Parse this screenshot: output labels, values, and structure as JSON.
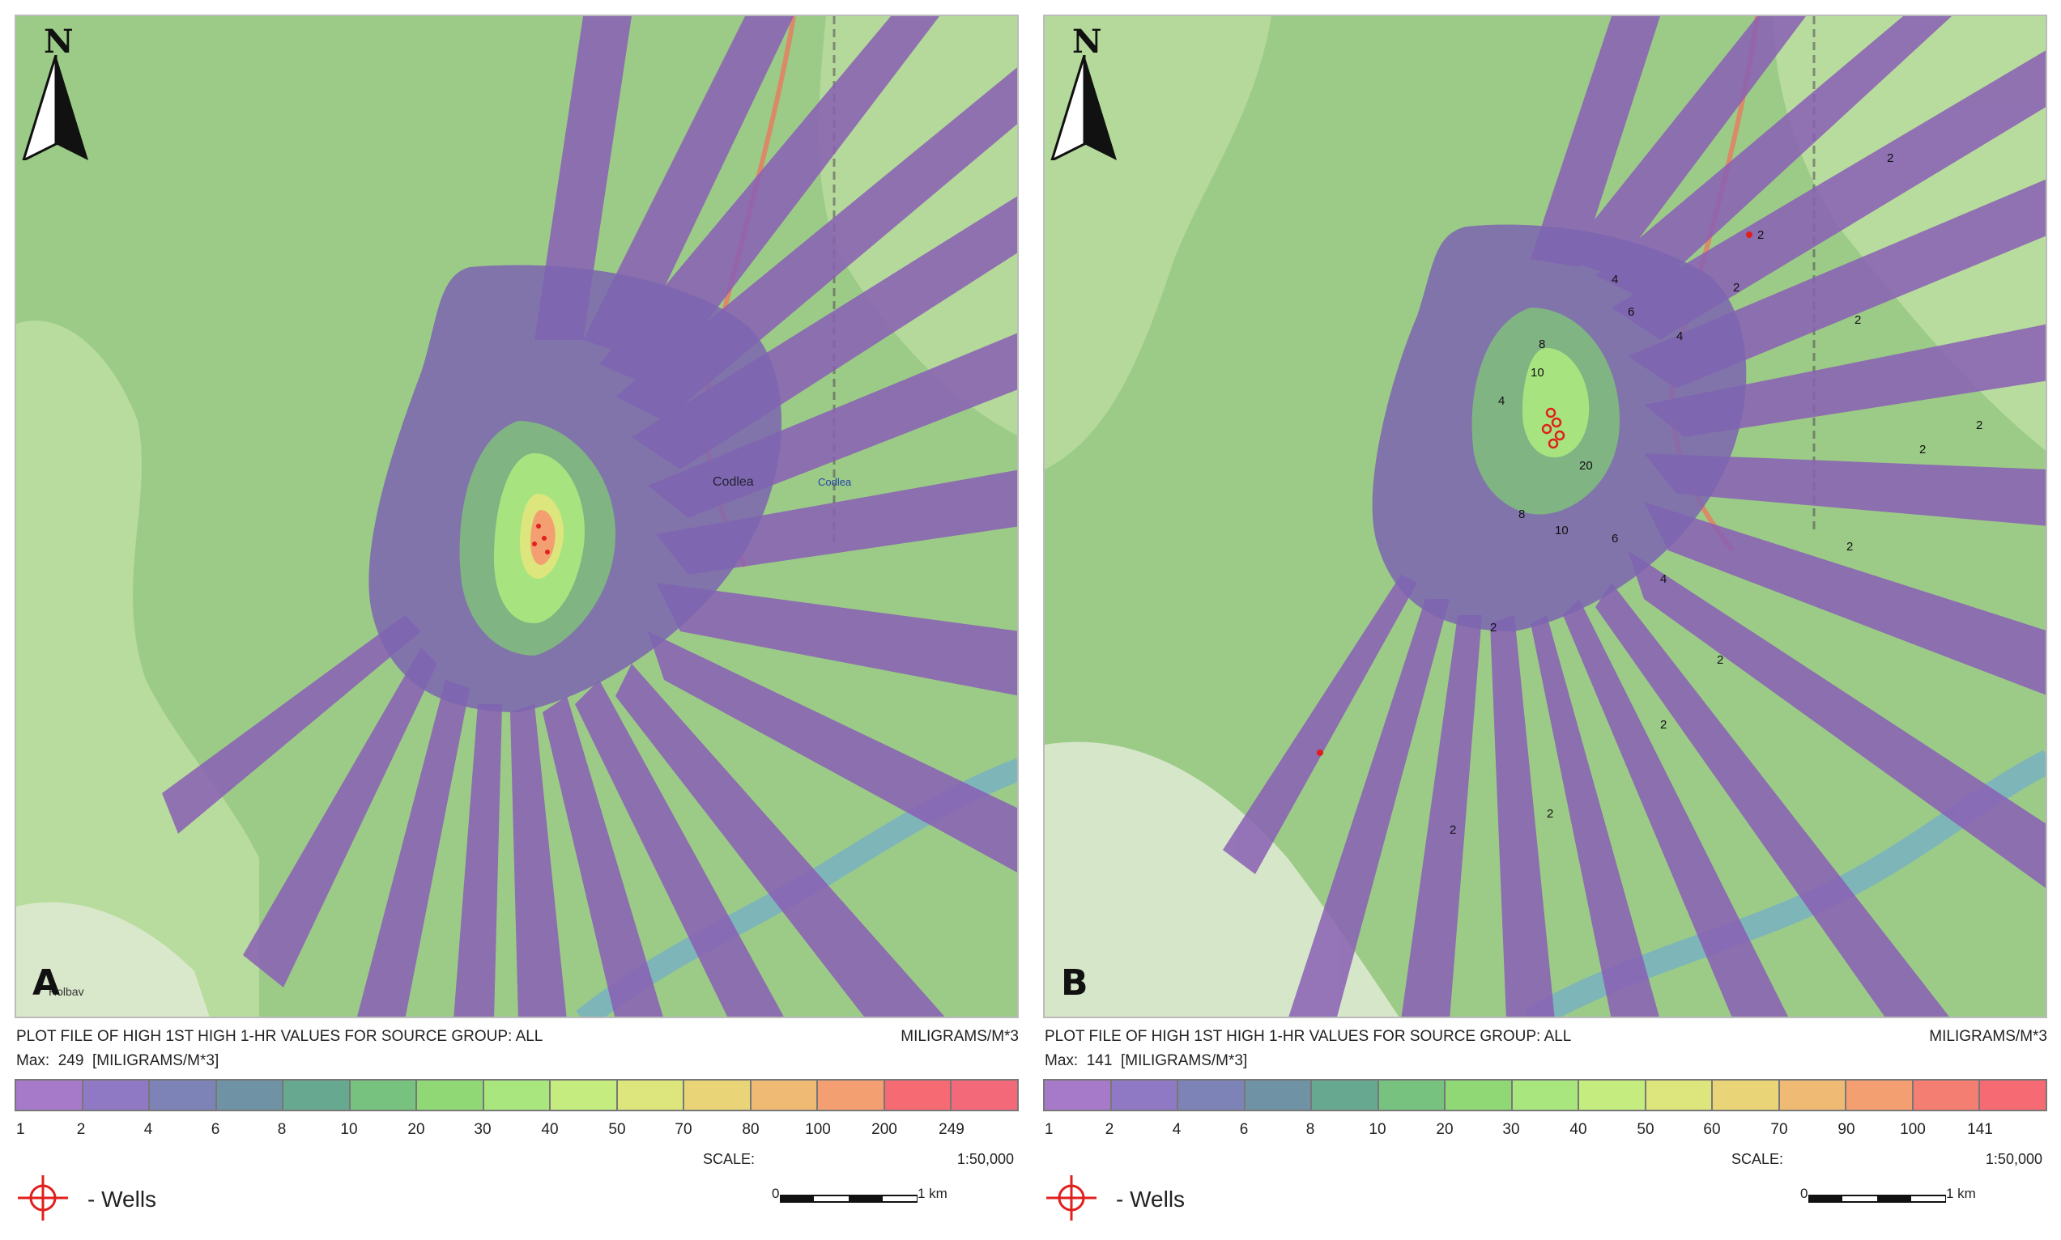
{
  "panels": [
    {
      "id": "A",
      "letter": "A",
      "north": "N",
      "town_label": "Codlea",
      "town_label_2": "Codlea",
      "place_label": "Holbav",
      "plot_title": "PLOT FILE OF HIGH 1ST HIGH 1-HR VALUES FOR SOURCE GROUP: ALL",
      "units": "MILIGRAMS/M*3",
      "max_label": "Max:  249  [MILIGRAMS/M*3]",
      "colorbar_ticks": [
        "1",
        "2",
        "4",
        "6",
        "8",
        "10",
        "20",
        "30",
        "40",
        "50",
        "70",
        "80",
        "100",
        "200",
        "249"
      ],
      "scale_label": "SCALE:",
      "scale_value": "1:50,000",
      "scalebar_zero": "0",
      "scalebar_km": "1 km",
      "wells_label": "- Wells"
    },
    {
      "id": "B",
      "letter": "B",
      "north": "N",
      "contour_labels": [
        "2",
        "2",
        "2",
        "4",
        "4",
        "6",
        "8",
        "10",
        "20",
        "8",
        "10",
        "6",
        "4",
        "2",
        "2",
        "2",
        "2",
        "2",
        "2",
        "2",
        "2",
        "4",
        "2"
      ],
      "plot_title": "PLOT FILE OF HIGH 1ST HIGH 1-HR VALUES FOR SOURCE GROUP: ALL",
      "units": "MILIGRAMS/M*3",
      "max_label": "Max:  141  [MILIGRAMS/M*3]",
      "colorbar_ticks": [
        "1",
        "2",
        "4",
        "6",
        "8",
        "10",
        "20",
        "30",
        "40",
        "50",
        "60",
        "70",
        "90",
        "100",
        "141"
      ],
      "scale_label": "SCALE:",
      "scale_value": "1:50,000",
      "scalebar_zero": "0",
      "scalebar_km": "1 km",
      "wells_label": "- Wells"
    }
  ],
  "colors": {
    "forest": "#9ccb88",
    "meadow": "#c5e3a6",
    "purple": "#8a5fb5",
    "wells_red": "#e0201c",
    "colorbar": [
      "#a779c9",
      "#8f78c4",
      "#7e83b7",
      "#6f93a5",
      "#66a890",
      "#76c27e",
      "#8fd875",
      "#a9e77e",
      "#c4ec7e",
      "#dce67c",
      "#e9d578",
      "#efbb74",
      "#f39f72",
      "#f57e72",
      "#f66a74"
    ]
  }
}
